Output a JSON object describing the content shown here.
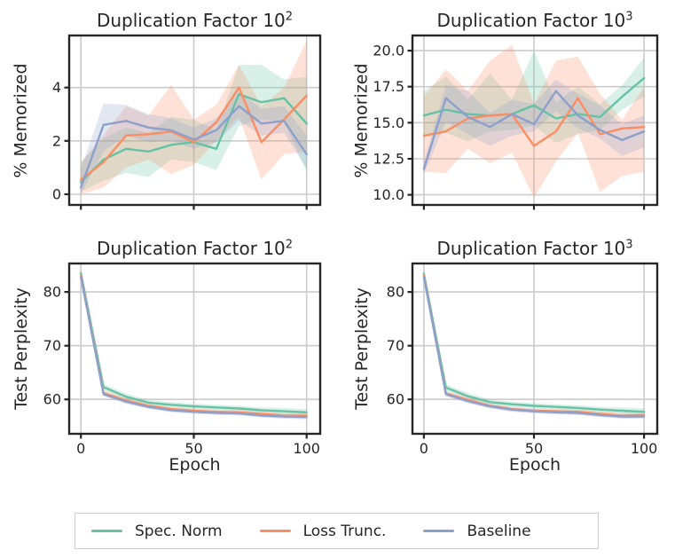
{
  "colors": {
    "spec_norm": "#66c2a5",
    "loss_trunc": "#fc8d62",
    "baseline": "#8da0cb",
    "grid": "#cccccc",
    "spine": "#262626",
    "text": "#262626",
    "band_opacity": 0.25
  },
  "legend": {
    "entries": [
      {
        "label": "Spec. Norm",
        "color_key": "spec_norm"
      },
      {
        "label": "Loss Trunc.",
        "color_key": "loss_trunc"
      },
      {
        "label": "Baseline",
        "color_key": "baseline"
      }
    ]
  },
  "chart_data": [
    {
      "id": "mem-100",
      "type": "line",
      "title_base": "Duplication Factor 10",
      "title_exp": "2",
      "ylabel": "% Memorized",
      "xlabel": "",
      "grid": true,
      "x": [
        0,
        10,
        20,
        30,
        40,
        50,
        60,
        70,
        80,
        90,
        100
      ],
      "xlim": [
        -5.2,
        106
      ],
      "ylim": [
        -0.4,
        5.95
      ],
      "xticks": {
        "values": [
          0,
          50,
          100
        ],
        "labels": [
          "0",
          "50",
          "100"
        ],
        "show_labels": false
      },
      "yticks": {
        "values": [
          0,
          2,
          4
        ],
        "labels": [
          "0",
          "2",
          "4"
        ]
      },
      "series": [
        {
          "name": "Spec. Norm",
          "color_key": "spec_norm",
          "values": [
            0.45,
            1.3,
            1.7,
            1.6,
            1.85,
            1.95,
            1.7,
            3.75,
            3.45,
            3.6,
            2.65
          ],
          "band_lower": [
            0.1,
            0.5,
            0.8,
            0.65,
            1.3,
            1.2,
            0.9,
            2.55,
            2.8,
            2.7,
            0.85
          ],
          "band_upper": [
            1.2,
            2.1,
            2.5,
            2.3,
            2.9,
            2.8,
            2.4,
            4.85,
            4.85,
            4.3,
            4.4
          ]
        },
        {
          "name": "Loss Trunc.",
          "color_key": "loss_trunc",
          "values": [
            0.55,
            1.2,
            2.2,
            2.25,
            2.35,
            1.95,
            2.7,
            4.0,
            1.95,
            2.8,
            3.7
          ],
          "band_lower": [
            0.0,
            0.25,
            1.0,
            1.3,
            0.75,
            1.1,
            2.0,
            2.9,
            0.55,
            1.5,
            1.6
          ],
          "band_upper": [
            1.2,
            2.2,
            3.3,
            2.95,
            4.1,
            2.8,
            3.35,
            4.85,
            3.3,
            4.0,
            5.75
          ]
        },
        {
          "name": "Baseline",
          "color_key": "baseline",
          "values": [
            0.25,
            2.6,
            2.75,
            2.5,
            2.4,
            2.05,
            2.4,
            3.3,
            2.65,
            2.75,
            1.5
          ],
          "band_lower": [
            0.0,
            1.6,
            2.2,
            1.95,
            2.0,
            1.7,
            1.95,
            2.75,
            2.2,
            2.3,
            0.95
          ],
          "band_upper": [
            0.95,
            3.4,
            3.35,
            3.0,
            2.85,
            2.5,
            2.85,
            3.85,
            3.2,
            3.3,
            2.2
          ]
        }
      ]
    },
    {
      "id": "mem-1000",
      "type": "line",
      "title_base": "Duplication Factor 10",
      "title_exp": "3",
      "ylabel": "% Memorized",
      "xlabel": "",
      "grid": true,
      "x": [
        0,
        10,
        20,
        30,
        40,
        50,
        60,
        70,
        80,
        90,
        100
      ],
      "xlim": [
        -5.2,
        106
      ],
      "ylim": [
        9.3,
        21.05
      ],
      "xticks": {
        "values": [
          0,
          50,
          100
        ],
        "labels": [
          "0",
          "50",
          "100"
        ],
        "show_labels": false
      },
      "yticks": {
        "values": [
          10.0,
          12.5,
          15.0,
          17.5,
          20.0
        ],
        "labels": [
          "10.0",
          "12.5",
          "15.0",
          "17.5",
          "20.0"
        ]
      },
      "series": [
        {
          "name": "Spec. Norm",
          "color_key": "spec_norm",
          "values": [
            15.5,
            15.9,
            15.6,
            15.5,
            15.6,
            16.2,
            15.3,
            15.6,
            15.4,
            16.8,
            18.1
          ],
          "band_lower": [
            14.0,
            14.3,
            13.7,
            14.4,
            14.5,
            14.8,
            13.6,
            14.2,
            14.5,
            15.9,
            16.8
          ],
          "band_upper": [
            17.2,
            18.2,
            16.6,
            18.4,
            16.6,
            20.0,
            16.4,
            17.5,
            16.3,
            17.6,
            19.5
          ]
        },
        {
          "name": "Loss Trunc.",
          "color_key": "loss_trunc",
          "values": [
            14.1,
            14.4,
            15.3,
            15.5,
            15.6,
            13.4,
            14.4,
            16.7,
            14.2,
            14.6,
            14.7
          ],
          "band_lower": [
            11.6,
            11.5,
            13.2,
            12.2,
            12.9,
            9.8,
            12.3,
            14.3,
            10.2,
            11.3,
            11.6
          ],
          "band_upper": [
            16.8,
            18.7,
            17.2,
            19.3,
            20.4,
            16.3,
            19.3,
            19.6,
            17.0,
            15.2,
            17.5
          ]
        },
        {
          "name": "Baseline",
          "color_key": "baseline",
          "values": [
            11.8,
            16.7,
            15.4,
            14.7,
            15.6,
            14.9,
            17.2,
            15.5,
            14.5,
            13.8,
            14.4
          ],
          "band_lower": [
            11.4,
            15.1,
            14.2,
            13.4,
            14.1,
            14.4,
            15.8,
            14.6,
            13.9,
            12.7,
            13.3
          ],
          "band_upper": [
            12.3,
            17.6,
            17.2,
            15.7,
            16.6,
            16.3,
            18.0,
            17.0,
            16.2,
            14.9,
            15.5
          ]
        }
      ]
    },
    {
      "id": "ppl-100",
      "type": "line",
      "title_base": "Duplication Factor 10",
      "title_exp": "2",
      "ylabel": "Test Perplexity",
      "xlabel": "Epoch",
      "grid": true,
      "x": [
        0,
        10,
        20,
        30,
        40,
        50,
        60,
        70,
        80,
        90,
        100
      ],
      "xlim": [
        -5.2,
        106
      ],
      "ylim": [
        53.6,
        85.3
      ],
      "xticks": {
        "values": [
          0,
          50,
          100
        ],
        "labels": [
          "0",
          "50",
          "100"
        ],
        "show_labels": true
      },
      "yticks": {
        "values": [
          60,
          70,
          80
        ],
        "labels": [
          "60",
          "70",
          "80"
        ]
      },
      "series": [
        {
          "name": "Spec. Norm",
          "color_key": "spec_norm",
          "values": [
            83.5,
            62.3,
            60.5,
            59.4,
            59.0,
            58.7,
            58.5,
            58.3,
            58.0,
            57.8,
            57.6
          ],
          "band_lower": [
            82.7,
            61.7,
            59.9,
            58.9,
            58.5,
            58.2,
            58.0,
            57.8,
            57.5,
            57.2,
            57.0
          ],
          "band_upper": [
            84.3,
            62.9,
            61.1,
            59.9,
            59.5,
            59.2,
            59.0,
            58.8,
            58.5,
            58.4,
            58.2
          ]
        },
        {
          "name": "Loss Trunc.",
          "color_key": "loss_trunc",
          "values": [
            83.0,
            61.2,
            59.8,
            58.8,
            58.2,
            57.9,
            57.7,
            57.6,
            57.3,
            57.0,
            57.0
          ],
          "band_lower": [
            82.4,
            60.7,
            59.3,
            58.4,
            57.8,
            57.5,
            57.3,
            57.2,
            56.8,
            56.5,
            56.5
          ],
          "band_upper": [
            83.6,
            61.7,
            60.3,
            59.2,
            58.6,
            58.3,
            58.1,
            58.0,
            57.8,
            57.5,
            57.5
          ]
        },
        {
          "name": "Baseline",
          "color_key": "baseline",
          "values": [
            82.8,
            61.0,
            59.6,
            58.6,
            58.0,
            57.7,
            57.5,
            57.4,
            57.0,
            56.8,
            56.7
          ],
          "band_lower": [
            82.3,
            60.6,
            59.2,
            58.2,
            57.6,
            57.3,
            57.1,
            57.0,
            56.6,
            56.4,
            56.3
          ],
          "band_upper": [
            83.3,
            61.4,
            60.0,
            59.0,
            58.4,
            58.1,
            57.9,
            57.8,
            57.4,
            57.2,
            57.1
          ]
        }
      ]
    },
    {
      "id": "ppl-1000",
      "type": "line",
      "title_base": "Duplication Factor 10",
      "title_exp": "3",
      "ylabel": "Test Perplexity",
      "xlabel": "Epoch",
      "grid": true,
      "x": [
        0,
        10,
        20,
        30,
        40,
        50,
        60,
        70,
        80,
        90,
        100
      ],
      "xlim": [
        -5.2,
        106
      ],
      "ylim": [
        53.6,
        85.3
      ],
      "xticks": {
        "values": [
          0,
          50,
          100
        ],
        "labels": [
          "0",
          "50",
          "100"
        ],
        "show_labels": true
      },
      "yticks": {
        "values": [
          60,
          70,
          80
        ],
        "labels": [
          "60",
          "70",
          "80"
        ]
      },
      "series": [
        {
          "name": "Spec. Norm",
          "color_key": "spec_norm",
          "values": [
            83.4,
            62.2,
            60.6,
            59.5,
            59.1,
            58.8,
            58.6,
            58.4,
            58.1,
            57.9,
            57.7
          ],
          "band_lower": [
            82.6,
            61.6,
            60.0,
            59.0,
            58.6,
            58.3,
            58.1,
            57.9,
            57.6,
            57.3,
            57.1
          ],
          "band_upper": [
            84.2,
            62.8,
            61.2,
            60.0,
            59.6,
            59.3,
            59.1,
            58.9,
            58.6,
            58.5,
            58.3
          ]
        },
        {
          "name": "Loss Trunc.",
          "color_key": "loss_trunc",
          "values": [
            83.0,
            61.1,
            59.9,
            58.8,
            58.2,
            57.9,
            57.8,
            57.7,
            57.3,
            57.0,
            57.1
          ],
          "band_lower": [
            82.4,
            60.6,
            59.4,
            58.4,
            57.8,
            57.5,
            57.4,
            57.2,
            56.8,
            56.5,
            56.6
          ],
          "band_upper": [
            83.6,
            61.6,
            60.4,
            59.2,
            58.6,
            58.3,
            58.2,
            58.1,
            57.8,
            57.5,
            57.6
          ]
        },
        {
          "name": "Baseline",
          "color_key": "baseline",
          "values": [
            82.8,
            61.0,
            59.7,
            58.7,
            58.1,
            57.8,
            57.6,
            57.5,
            57.1,
            56.8,
            56.8
          ],
          "band_lower": [
            82.3,
            60.6,
            59.3,
            58.3,
            57.7,
            57.4,
            57.2,
            57.1,
            56.7,
            56.4,
            56.4
          ],
          "band_upper": [
            83.3,
            61.4,
            60.1,
            59.1,
            58.5,
            58.2,
            58.0,
            57.9,
            57.5,
            57.2,
            57.2
          ]
        }
      ]
    }
  ]
}
